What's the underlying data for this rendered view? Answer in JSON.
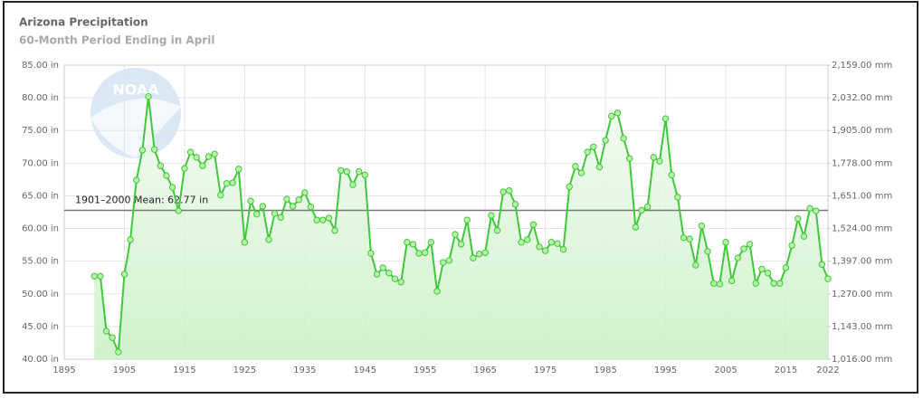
{
  "chart_data": {
    "type": "line",
    "title": "Arizona Precipitation",
    "subtitle": "60-Month Period Ending in April",
    "x": [
      1900,
      1901,
      1902,
      1903,
      1904,
      1905,
      1906,
      1907,
      1908,
      1909,
      1910,
      1911,
      1912,
      1913,
      1914,
      1915,
      1916,
      1917,
      1918,
      1919,
      1920,
      1921,
      1922,
      1923,
      1924,
      1925,
      1926,
      1927,
      1928,
      1929,
      1930,
      1931,
      1932,
      1933,
      1934,
      1935,
      1936,
      1937,
      1938,
      1939,
      1940,
      1941,
      1942,
      1943,
      1944,
      1945,
      1946,
      1947,
      1948,
      1949,
      1950,
      1951,
      1952,
      1953,
      1954,
      1955,
      1956,
      1957,
      1958,
      1959,
      1960,
      1961,
      1962,
      1963,
      1964,
      1965,
      1966,
      1967,
      1968,
      1969,
      1970,
      1971,
      1972,
      1973,
      1974,
      1975,
      1976,
      1977,
      1978,
      1979,
      1980,
      1981,
      1982,
      1983,
      1984,
      1985,
      1986,
      1987,
      1988,
      1989,
      1990,
      1991,
      1992,
      1993,
      1994,
      1995,
      1996,
      1997,
      1998,
      1999,
      2000,
      2001,
      2002,
      2003,
      2004,
      2005,
      2006,
      2007,
      2008,
      2009,
      2010,
      2011,
      2012,
      2013,
      2014,
      2015,
      2016,
      2017,
      2018,
      2019,
      2020,
      2021,
      2022
    ],
    "values": [
      52.7,
      52.7,
      44.3,
      43.3,
      41.1,
      53.0,
      58.3,
      67.4,
      72.0,
      80.2,
      72.1,
      69.6,
      68.1,
      66.3,
      62.7,
      69.2,
      71.7,
      70.9,
      69.6,
      71.0,
      71.4,
      65.1,
      66.9,
      67.0,
      69.1,
      57.9,
      64.2,
      62.2,
      63.4,
      58.3,
      62.3,
      61.7,
      64.5,
      63.4,
      64.4,
      65.5,
      63.3,
      61.3,
      61.3,
      61.6,
      59.7,
      68.9,
      68.7,
      66.7,
      68.7,
      68.2,
      56.2,
      53.0,
      54.0,
      53.2,
      52.3,
      51.8,
      57.9,
      57.6,
      56.2,
      56.3,
      57.9,
      50.4,
      54.8,
      55.1,
      59.1,
      57.6,
      61.3,
      55.5,
      56.1,
      56.3,
      62.0,
      59.7,
      65.6,
      65.8,
      63.7,
      57.9,
      58.3,
      60.6,
      57.2,
      56.6,
      57.9,
      57.7,
      56.8,
      66.4,
      69.5,
      68.5,
      71.7,
      72.5,
      69.4,
      73.5,
      77.2,
      77.7,
      73.8,
      70.7,
      60.2,
      62.8,
      63.3,
      70.9,
      70.3,
      76.8,
      68.2,
      64.8,
      58.6,
      58.4,
      54.4,
      60.4,
      56.5,
      51.6,
      51.5,
      57.9,
      52.0,
      55.5,
      56.9,
      57.6,
      51.6,
      53.8,
      53.2,
      51.6,
      51.6,
      54.0,
      57.4,
      61.5,
      58.8,
      63.1,
      62.7,
      54.5,
      52.3
    ],
    "color": "#3fc83a",
    "xlim": [
      1895,
      2022
    ],
    "xticks": [
      1895,
      1905,
      1915,
      1925,
      1935,
      1945,
      1955,
      1965,
      1975,
      1985,
      1995,
      2005,
      2015,
      2022
    ],
    "ylim": [
      40,
      85
    ],
    "yticks": [
      {
        "value": 40,
        "label": "40.00 in"
      },
      {
        "value": 45,
        "label": "45.00 in"
      },
      {
        "value": 50,
        "label": "50.00 in"
      },
      {
        "value": 55,
        "label": "55.00 in"
      },
      {
        "value": 60,
        "label": "60.00 in"
      },
      {
        "value": 65,
        "label": "65.00 in"
      },
      {
        "value": 70,
        "label": "70.00 in"
      },
      {
        "value": 75,
        "label": "75.00 in"
      },
      {
        "value": 80,
        "label": "80.00 in"
      },
      {
        "value": 85,
        "label": "85.00 in"
      }
    ],
    "y2lim": [
      1016,
      2159
    ],
    "y2ticks": [
      {
        "value": 1016,
        "label": "1,016.00 mm"
      },
      {
        "value": 1143,
        "label": "1,143.00 mm"
      },
      {
        "value": 1270,
        "label": "1,270.00 mm"
      },
      {
        "value": 1397,
        "label": "1,397.00 mm"
      },
      {
        "value": 1524,
        "label": "1,524.00 mm"
      },
      {
        "value": 1651,
        "label": "1,651.00 mm"
      },
      {
        "value": 1778,
        "label": "1,778.00 mm"
      },
      {
        "value": 1905,
        "label": "1,905.00 mm"
      },
      {
        "value": 2032,
        "label": "2,032.00 mm"
      },
      {
        "value": 2159,
        "label": "2,159.00 mm"
      }
    ],
    "mean": {
      "value": 62.77,
      "label": "1901–2000 Mean: 62.77 in"
    },
    "grid": true
  }
}
